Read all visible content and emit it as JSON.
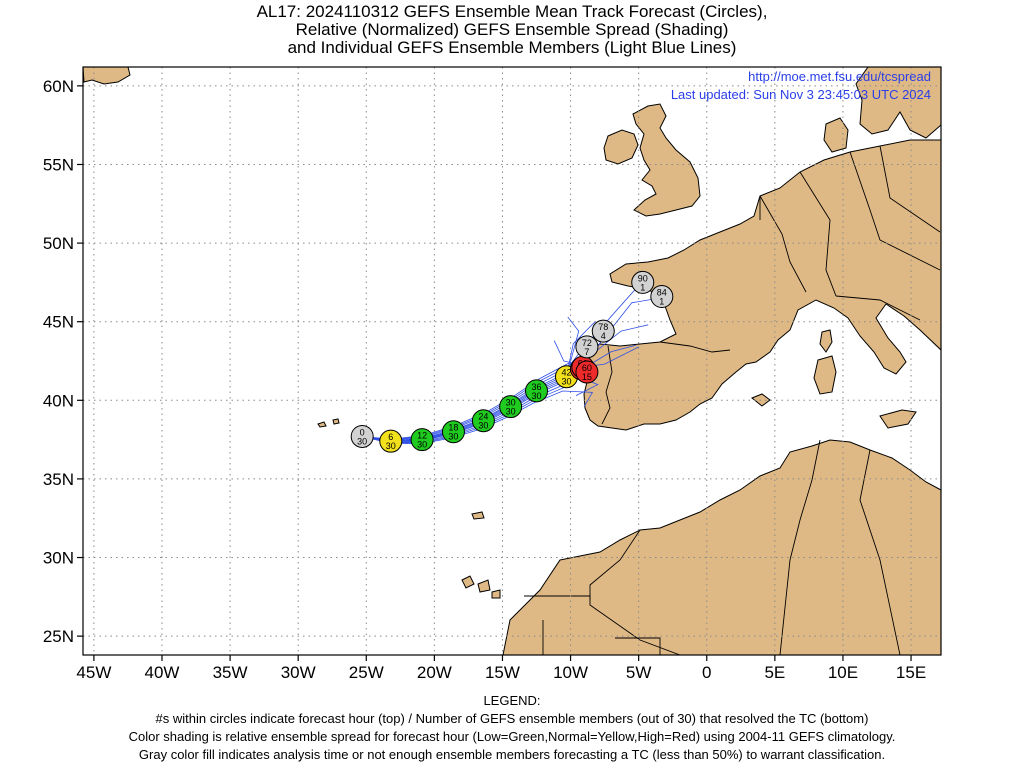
{
  "title": {
    "line1": "AL17: 2024110312 GEFS Ensemble Mean Track Forecast (Circles),",
    "line2": "Relative (Normalized) GEFS Ensemble Spread (Shading)",
    "line3": "and Individual GEFS Ensemble Members (Light Blue Lines)"
  },
  "source": {
    "url": "http://moe.met.fsu.edu/tcspread",
    "updated": "Last updated: Sun Nov 3 23:45:03 UTC 2024"
  },
  "colors": {
    "land": "#dfb985",
    "ocean": "#ffffff",
    "member_track": "#2f4fe6",
    "low_spread": "#1fcb1f",
    "normal_spread": "#f2e01c",
    "high_spread": "#ef2a2a",
    "gray_fill": "#d2d2d2",
    "url": "#2a3ee8"
  },
  "legend": {
    "heading": "LEGEND:",
    "line1": "#s within circles indicate forecast hour (top) / Number of GEFS ensemble members (out of 30) that resolved the TC (bottom)",
    "line2": "Color shading is relative ensemble spread for forecast hour (Low=Green,Normal=Yellow,High=Red) using 2004-11 GEFS climatology.",
    "line3": "Gray color fill indicates analysis time or not enough ensemble members forecasting a TC (less than 50%) to warrant classification."
  },
  "axes": {
    "lon_ticks": [
      "45W",
      "40W",
      "35W",
      "30W",
      "25W",
      "20W",
      "15W",
      "10W",
      "5W",
      "0",
      "5E",
      "10E",
      "15E"
    ],
    "lat_ticks": [
      "60N",
      "55N",
      "50N",
      "45N",
      "40N",
      "35N",
      "30N",
      "25N"
    ]
  },
  "chart_data": {
    "type": "scatter",
    "xlim": [
      -45.8,
      17.2
    ],
    "ylim": [
      23.8,
      61.2
    ],
    "grid": true,
    "mean_track": [
      {
        "hour": "0",
        "members": "30",
        "lon": -25.3,
        "lat": 37.7,
        "spread": "gray"
      },
      {
        "hour": "6",
        "members": "30",
        "lon": -23.2,
        "lat": 37.4,
        "spread": "normal"
      },
      {
        "hour": "12",
        "members": "30",
        "lon": -20.9,
        "lat": 37.5,
        "spread": "low"
      },
      {
        "hour": "18",
        "members": "30",
        "lon": -18.6,
        "lat": 38.0,
        "spread": "low"
      },
      {
        "hour": "24",
        "members": "30",
        "lon": -16.4,
        "lat": 38.7,
        "spread": "low"
      },
      {
        "hour": "30",
        "members": "30",
        "lon": -14.4,
        "lat": 39.6,
        "spread": "low"
      },
      {
        "hour": "36",
        "members": "30",
        "lon": -12.5,
        "lat": 40.6,
        "spread": "low"
      },
      {
        "hour": "42",
        "members": "30",
        "lon": -10.3,
        "lat": 41.5,
        "spread": "normal"
      },
      {
        "hour": "48",
        "members": "24",
        "lon": -9.2,
        "lat": 42.0,
        "spread": "high"
      },
      {
        "hour": "66",
        "members": "15",
        "lon": -9.1,
        "lat": 42.1,
        "spread": "high"
      },
      {
        "hour": "60",
        "members": "15",
        "lon": -8.8,
        "lat": 41.8,
        "spread": "high"
      },
      {
        "hour": "72",
        "members": "7",
        "lon": -8.8,
        "lat": 43.4,
        "spread": "gray"
      },
      {
        "hour": "78",
        "members": "4",
        "lon": -7.6,
        "lat": 44.4,
        "spread": "gray"
      },
      {
        "hour": "84",
        "members": "1",
        "lon": -3.3,
        "lat": 46.6,
        "spread": "gray"
      },
      {
        "hour": "90",
        "members": "1",
        "lon": -4.7,
        "lat": 47.5,
        "spread": "gray"
      }
    ]
  }
}
